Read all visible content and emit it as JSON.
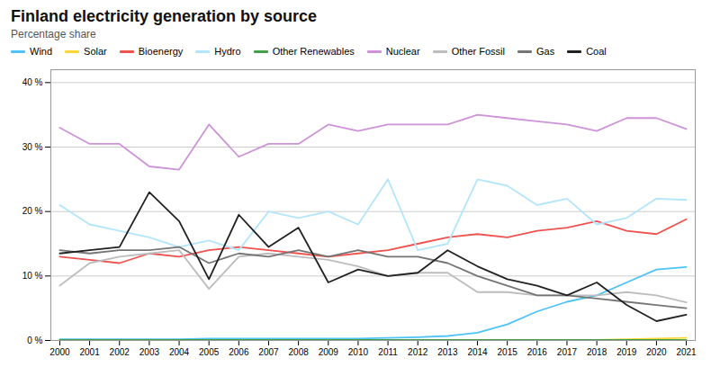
{
  "chart_data": {
    "type": "line",
    "title": "Finland electricity generation by source",
    "subtitle": "Percentage share",
    "x": [
      2000,
      2001,
      2002,
      2003,
      2004,
      2005,
      2006,
      2007,
      2008,
      2009,
      2010,
      2011,
      2012,
      2013,
      2014,
      2015,
      2016,
      2017,
      2018,
      2019,
      2020,
      2021
    ],
    "series": [
      {
        "name": "Wind",
        "color": "#4FC3F7",
        "values": [
          0.2,
          0.2,
          0.2,
          0.2,
          0.2,
          0.3,
          0.3,
          0.3,
          0.3,
          0.3,
          0.3,
          0.4,
          0.5,
          0.7,
          1.2,
          2.5,
          4.5,
          6.0,
          7.0,
          9.0,
          11.0,
          11.4
        ]
      },
      {
        "name": "Solar",
        "color": "#FDD835",
        "values": [
          0.0,
          0.0,
          0.0,
          0.0,
          0.0,
          0.0,
          0.0,
          0.0,
          0.0,
          0.0,
          0.0,
          0.0,
          0.0,
          0.0,
          0.0,
          0.0,
          0.0,
          0.0,
          0.1,
          0.2,
          0.3,
          0.4
        ]
      },
      {
        "name": "Bioenergy",
        "color": "#EF5350",
        "values": [
          13.0,
          12.5,
          12.0,
          13.5,
          13.0,
          14.0,
          14.5,
          14.0,
          13.5,
          13.0,
          13.5,
          14.0,
          15.0,
          16.0,
          16.5,
          16.0,
          17.0,
          17.5,
          18.5,
          17.0,
          16.5,
          18.8
        ]
      },
      {
        "name": "Hydro",
        "color": "#B3E5FC",
        "values": [
          21.0,
          18.0,
          17.0,
          16.0,
          14.5,
          15.5,
          14.0,
          20.0,
          19.0,
          20.0,
          18.0,
          25.0,
          14.0,
          15.0,
          25.0,
          24.0,
          21.0,
          22.0,
          18.0,
          19.0,
          22.0,
          21.8
        ]
      },
      {
        "name": "Other Renewables",
        "color": "#43A047",
        "values": [
          0.1,
          0.1,
          0.1,
          0.1,
          0.1,
          0.1,
          0.1,
          0.1,
          0.1,
          0.1,
          0.1,
          0.1,
          0.1,
          0.1,
          0.1,
          0.1,
          0.1,
          0.1,
          0.1,
          0.1,
          0.1,
          0.1
        ]
      },
      {
        "name": "Nuclear",
        "color": "#CE93D8",
        "values": [
          33.0,
          30.5,
          30.5,
          27.0,
          26.5,
          33.5,
          28.5,
          30.5,
          30.5,
          33.5,
          32.5,
          33.5,
          33.5,
          33.5,
          35.0,
          34.5,
          34.0,
          33.5,
          32.5,
          34.5,
          34.5,
          32.8
        ]
      },
      {
        "name": "Other Fossil",
        "color": "#BDBDBD",
        "values": [
          8.5,
          12.0,
          13.0,
          13.5,
          14.0,
          8.0,
          13.0,
          13.5,
          13.0,
          12.5,
          11.5,
          10.0,
          10.5,
          10.5,
          7.5,
          7.5,
          7.0,
          7.0,
          7.0,
          7.5,
          7.0,
          5.9
        ]
      },
      {
        "name": "Gas",
        "color": "#757575",
        "values": [
          14.0,
          13.5,
          14.0,
          14.0,
          14.5,
          12.0,
          13.5,
          13.0,
          14.0,
          13.0,
          14.0,
          13.0,
          13.0,
          12.0,
          10.0,
          8.5,
          7.0,
          7.0,
          6.5,
          6.0,
          5.5,
          5.0
        ]
      },
      {
        "name": "Coal",
        "color": "#212121",
        "values": [
          13.5,
          14.0,
          14.5,
          23.0,
          18.5,
          9.5,
          19.5,
          14.5,
          17.5,
          9.0,
          11.0,
          10.0,
          10.5,
          14.0,
          11.5,
          9.5,
          8.5,
          7.0,
          9.0,
          5.5,
          3.0,
          4.0
        ]
      }
    ],
    "xlim": [
      1999.7,
      2021.3
    ],
    "xticks": [
      2000,
      2001,
      2002,
      2003,
      2004,
      2005,
      2006,
      2007,
      2008,
      2009,
      2010,
      2011,
      2012,
      2013,
      2014,
      2015,
      2016,
      2017,
      2018,
      2019,
      2020,
      2021
    ],
    "ylim": [
      0,
      42
    ],
    "yticks": [
      {
        "value": 0,
        "label": "0 %"
      },
      {
        "value": 10,
        "label": "10 %"
      },
      {
        "value": 20,
        "label": "20 %"
      },
      {
        "value": 30,
        "label": "30 %"
      },
      {
        "value": 40,
        "label": "40 %"
      }
    ],
    "grid": true,
    "legend": "top"
  }
}
